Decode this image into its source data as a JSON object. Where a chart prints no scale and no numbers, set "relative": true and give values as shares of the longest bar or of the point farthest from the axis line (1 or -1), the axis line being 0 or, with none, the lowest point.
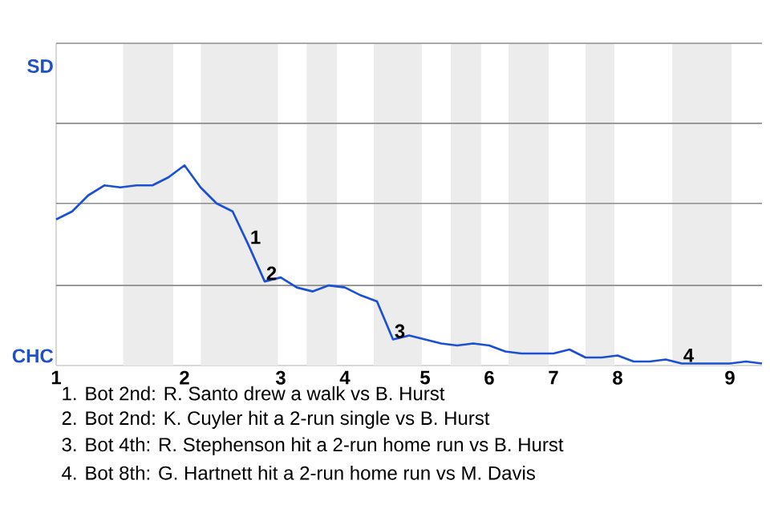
{
  "chart_data": {
    "type": "line",
    "categories": [
      "1",
      null,
      null,
      null,
      null,
      null,
      null,
      null,
      "2",
      null,
      null,
      null,
      null,
      null,
      "3",
      null,
      null,
      null,
      "4",
      null,
      null,
      null,
      null,
      "5",
      null,
      null,
      null,
      "6",
      null,
      null,
      null,
      "7",
      null,
      null,
      null,
      "8",
      null,
      null,
      null,
      null,
      null,
      null,
      "9",
      null,
      null
    ],
    "values": [
      0.73,
      0.77,
      0.85,
      0.9,
      0.89,
      0.9,
      0.9,
      0.94,
      1,
      0.89,
      0.81,
      0.77,
      0.6,
      0.42,
      0.44,
      0.39,
      0.37,
      0.4,
      0.39,
      0.35,
      0.32,
      0.13,
      0.15,
      0.13,
      0.11,
      0.1,
      0.11,
      0.1,
      0.07,
      0.06,
      0.06,
      0.06,
      0.08,
      0.04,
      0.04,
      0.05,
      0.02,
      0.02,
      0.03,
      0.01,
      0.01,
      0.01,
      0.01,
      0.02,
      0.01
    ],
    "relative": true,
    "color": "#1a4fd6",
    "marker": "none",
    "line_style": "solid",
    "ref_lines": [
      {
        "axis": "y",
        "value": 0.4,
        "color": "#8c8c8c"
      },
      {
        "axis": "y",
        "value": 0.81,
        "color": "#8c8c8c"
      },
      {
        "axis": "y",
        "value": 1.21,
        "color": "#8c8c8c"
      },
      {
        "axis": "y",
        "value": 1.61,
        "color": "#8c8c8c"
      }
    ],
    "annotations": [
      "SD",
      "CHC",
      {
        "text": "1",
        "y": 0.6
      },
      {
        "text": "2",
        "y": 0.42
      },
      {
        "text": "3",
        "y": 0.13
      },
      {
        "text": "4",
        "y": 0.01
      },
      "1. Bot 2nd: R. Santo drew a walk vs B. Hurst",
      "2. Bot 2nd: K. Cuyler hit a 2-run single vs B. Hurst",
      "3. Bot 4th: R. Stephenson hit a 2-run home run vs B. Hurst",
      "4. Bot 8th: G. Hartnett hit a 2-run home run vs M. Davis"
    ]
  }
}
